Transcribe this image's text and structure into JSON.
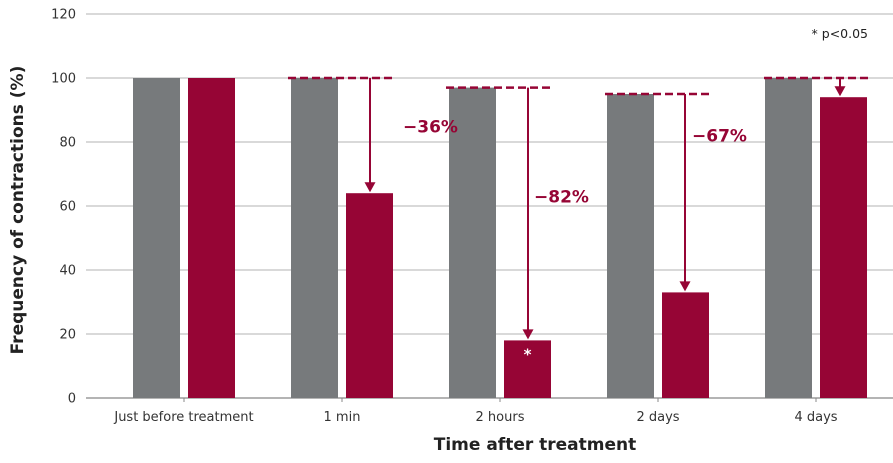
{
  "chart_data": {
    "type": "bar",
    "xlabel": "Time after treatment",
    "ylabel": "Frequency of contractions (%)",
    "ylim": [
      0,
      120
    ],
    "yticks": [
      0,
      20,
      40,
      60,
      80,
      100,
      120
    ],
    "grid": true,
    "categories": [
      "Just before treatment",
      "1 min",
      "2 hours",
      "2 days",
      "4 days"
    ],
    "series": [
      {
        "values": [
          100,
          100,
          97,
          95,
          100
        ]
      },
      {
        "values": [
          100,
          64,
          18,
          33,
          94
        ]
      }
    ],
    "annotations": [
      {
        "category": "1 min",
        "label": "−36%"
      },
      {
        "category": "2 hours",
        "label": "−82%"
      },
      {
        "category": "2 days",
        "label": "−67%"
      },
      {
        "category": "4 days",
        "label": ""
      }
    ],
    "significance_marker": {
      "category": "2 hours",
      "label": "*"
    },
    "note": "* p<0.05"
  },
  "colors": {
    "series_0": "#777a7c",
    "series_1": "#960535",
    "grid": "#b3b3b3",
    "axis": "#888888"
  }
}
